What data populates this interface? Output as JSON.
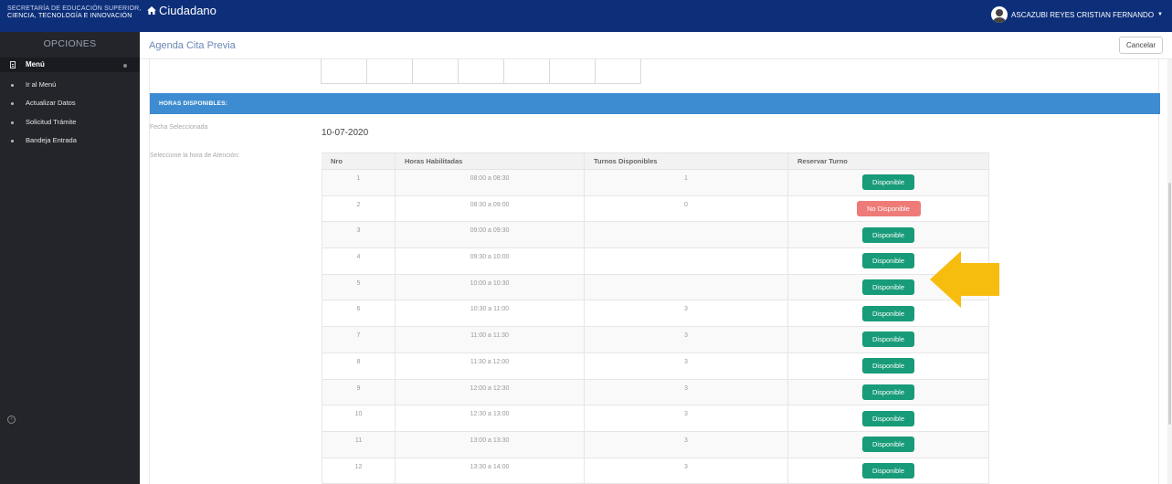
{
  "header": {
    "brand_line1": "SECRETARÍA DE EDUCACIÓN SUPERIOR,",
    "brand_line2": "CIENCIA, TECNOLOGÍA E INNOVACIÓN",
    "app_title": "Ciudadano",
    "user_name": "ASCAZUBI REYES CRISTIAN FERNANDO"
  },
  "sidebar": {
    "title": "OPCIONES",
    "menu_label": "Menú",
    "items": [
      {
        "label": "Ir al Menú"
      },
      {
        "label": "Actualizar Datos"
      },
      {
        "label": "Solicitud Trámite"
      },
      {
        "label": "Bandeja Entrada"
      }
    ]
  },
  "page": {
    "title": "Agenda Cita Previa",
    "cancel_label": "Cancelar",
    "section_title": "HORAS DISPONIBLES:",
    "date_label": "Fecha Seleccionada",
    "date_value": "10-07-2020",
    "hour_label": "Seleccione la hora de Atención:"
  },
  "table": {
    "headers": [
      "Nro",
      "Horas Habilitadas",
      "Turnos Disponibles",
      "Reservar Turno"
    ],
    "rows": [
      {
        "nro": "1",
        "hours": "08:00 a 08:30",
        "turns": "1",
        "status": "Disponible"
      },
      {
        "nro": "2",
        "hours": "08:30 a 09:00",
        "turns": "0",
        "status": "No Disponible"
      },
      {
        "nro": "3",
        "hours": "09:00 a 09:30",
        "turns": "",
        "status": "Disponible"
      },
      {
        "nro": "4",
        "hours": "09:30 a 10:00",
        "turns": "",
        "status": "Disponible"
      },
      {
        "nro": "5",
        "hours": "10:00 a 10:30",
        "turns": "",
        "status": "Disponible"
      },
      {
        "nro": "6",
        "hours": "10:30 a 11:00",
        "turns": "3",
        "status": "Disponible"
      },
      {
        "nro": "7",
        "hours": "11:00 a 11:30",
        "turns": "3",
        "status": "Disponible"
      },
      {
        "nro": "8",
        "hours": "11:30 a 12:00",
        "turns": "3",
        "status": "Disponible"
      },
      {
        "nro": "9",
        "hours": "12:00 a 12:30",
        "turns": "3",
        "status": "Disponible"
      },
      {
        "nro": "10",
        "hours": "12:30 a 13:00",
        "turns": "3",
        "status": "Disponible"
      },
      {
        "nro": "11",
        "hours": "13:00 a 13:30",
        "turns": "3",
        "status": "Disponible"
      },
      {
        "nro": "12",
        "hours": "13:30 a 14:00",
        "turns": "3",
        "status": "Disponible"
      }
    ]
  },
  "colors": {
    "topbar": "#0d2f7a",
    "sidebar": "#23252b",
    "section_bar": "#3d8bd0",
    "available": "#189b78",
    "unavailable": "#ee7b78",
    "arrow": "#f7bd0e"
  },
  "icons": {
    "home": "home-icon",
    "user": "user-avatar-icon",
    "menu": "menu-icon",
    "arrow": "arrow-left-icon"
  }
}
